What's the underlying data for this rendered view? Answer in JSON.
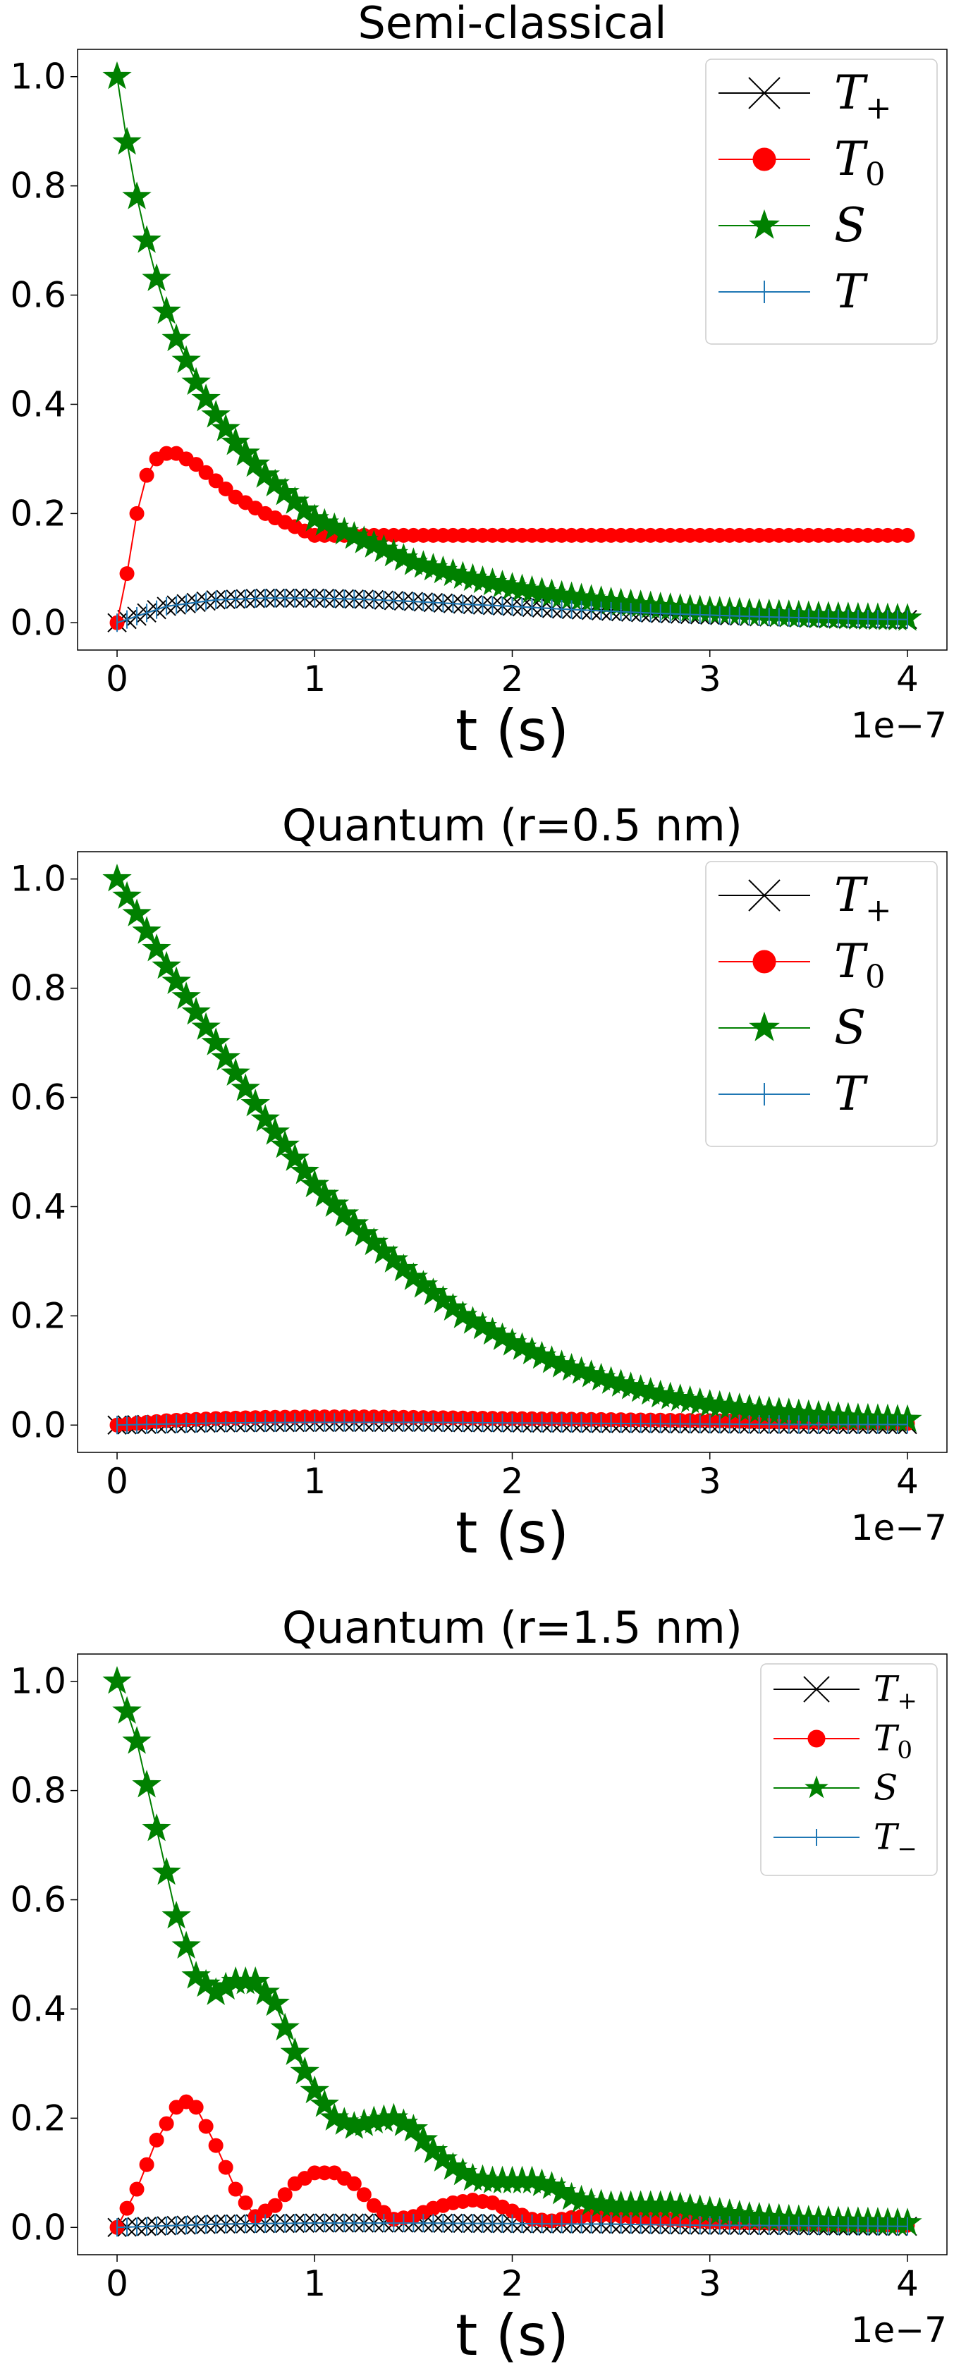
{
  "chart_data": [
    {
      "type": "line",
      "title": "Semi-classical",
      "xlabel": "t (s)",
      "x_offset_text": "1e−7",
      "xlim": [
        -0.2,
        4.2
      ],
      "ylim": [
        -0.05,
        1.05
      ],
      "x_ticks": [
        0,
        1,
        2,
        3,
        4
      ],
      "x_tick_labels": [
        "0",
        "1",
        "2",
        "3",
        "4"
      ],
      "y_ticks": [
        0.0,
        0.2,
        0.4,
        0.6,
        0.8,
        1.0
      ],
      "y_tick_labels": [
        "0.0",
        "0.2",
        "0.4",
        "0.6",
        "0.8",
        "1.0"
      ],
      "x_unit_scale": "1e-7 s",
      "legend_position": "upper-right",
      "grid": false,
      "series": [
        {
          "name": "T",
          "sub": "+",
          "color": "#000000",
          "marker": "x",
          "x": [
            0,
            0.25,
            0.5,
            0.75,
            1.0,
            1.25,
            1.5,
            1.75,
            2.0,
            2.25,
            2.5,
            2.75,
            3.0,
            3.25,
            3.5,
            3.75,
            4.0
          ],
          "y": [
            0.0,
            0.03,
            0.042,
            0.045,
            0.045,
            0.043,
            0.039,
            0.034,
            0.03,
            0.025,
            0.021,
            0.017,
            0.014,
            0.011,
            0.009,
            0.007,
            0.006
          ]
        },
        {
          "name": "T",
          "sub": "0",
          "color": "#ff0000",
          "marker": "o",
          "x": [
            0,
            0.05,
            0.1,
            0.15,
            0.2,
            0.25,
            0.3,
            0.35,
            0.4,
            0.5,
            0.6,
            0.75,
            1.0
          ],
          "y": [
            0.0,
            0.09,
            0.2,
            0.27,
            0.3,
            0.31,
            0.31,
            0.3,
            0.29,
            0.26,
            0.23,
            0.2,
            0.16
          ]
        },
        {
          "name": "S",
          "sub": "",
          "color": "#008000",
          "marker": "*",
          "x": [
            0,
            0.05,
            0.1,
            0.15,
            0.2,
            0.25,
            0.3,
            0.4,
            0.5,
            0.6,
            0.75,
            1.0,
            1.25,
            1.5,
            1.75,
            2.0,
            2.25,
            2.5,
            2.75,
            3.0,
            3.25,
            3.5,
            3.75,
            4.0
          ],
          "y": [
            1.0,
            0.88,
            0.78,
            0.7,
            0.63,
            0.57,
            0.52,
            0.44,
            0.38,
            0.33,
            0.27,
            0.19,
            0.15,
            0.11,
            0.085,
            0.065,
            0.05,
            0.038,
            0.029,
            0.022,
            0.017,
            0.013,
            0.01,
            0.008
          ]
        },
        {
          "name": "T",
          "sub": "",
          "color": "#1f77b4",
          "marker": "|",
          "x": [
            0,
            0.25,
            0.5,
            0.75,
            1.0,
            1.25,
            1.5,
            1.75,
            2.0,
            2.25,
            2.5,
            2.75,
            3.0,
            3.25,
            3.5,
            3.75,
            4.0
          ],
          "y": [
            0.0,
            0.03,
            0.042,
            0.045,
            0.045,
            0.043,
            0.039,
            0.034,
            0.03,
            0.025,
            0.021,
            0.017,
            0.014,
            0.011,
            0.009,
            0.007,
            0.006
          ]
        }
      ]
    },
    {
      "type": "line",
      "title": "Quantum (r=0.5 nm)",
      "xlabel": "t (s)",
      "x_offset_text": "1e−7",
      "xlim": [
        -0.2,
        4.2
      ],
      "ylim": [
        -0.05,
        1.05
      ],
      "x_ticks": [
        0,
        1,
        2,
        3,
        4
      ],
      "x_tick_labels": [
        "0",
        "1",
        "2",
        "3",
        "4"
      ],
      "y_ticks": [
        0.0,
        0.2,
        0.4,
        0.6,
        0.8,
        1.0
      ],
      "y_tick_labels": [
        "0.0",
        "0.2",
        "0.4",
        "0.6",
        "0.8",
        "1.0"
      ],
      "x_unit_scale": "1e-7 s",
      "legend_position": "upper-right",
      "grid": false,
      "series": [
        {
          "name": "T",
          "sub": "+",
          "color": "#000000",
          "marker": "x",
          "x": [
            0,
            0.5,
            1.0,
            1.5,
            2.0,
            2.5,
            3.0,
            3.5,
            4.0
          ],
          "y": [
            0.0,
            0.004,
            0.005,
            0.005,
            0.004,
            0.003,
            0.002,
            0.001,
            0.001
          ]
        },
        {
          "name": "T",
          "sub": "0",
          "color": "#ff0000",
          "marker": "o",
          "x": [
            0,
            0.25,
            0.5,
            0.75,
            1.0,
            1.25,
            1.5,
            1.75,
            2.0,
            2.25,
            2.5,
            2.75,
            3.0,
            3.25,
            3.5,
            3.75,
            4.0
          ],
          "y": [
            0.0,
            0.008,
            0.012,
            0.014,
            0.015,
            0.015,
            0.014,
            0.013,
            0.012,
            0.011,
            0.01,
            0.009,
            0.008,
            0.006,
            0.005,
            0.004,
            0.003
          ]
        },
        {
          "name": "S",
          "sub": "",
          "color": "#008000",
          "marker": "*",
          "x": [
            0,
            0.25,
            0.5,
            0.75,
            1.0,
            1.25,
            1.5,
            1.75,
            2.0,
            2.25,
            2.5,
            2.75,
            3.0,
            3.25,
            3.5,
            3.75,
            4.0
          ],
          "y": [
            1.0,
            0.84,
            0.7,
            0.56,
            0.44,
            0.35,
            0.27,
            0.2,
            0.15,
            0.11,
            0.08,
            0.055,
            0.038,
            0.027,
            0.019,
            0.013,
            0.01
          ]
        },
        {
          "name": "T",
          "sub": "",
          "color": "#1f77b4",
          "marker": "|",
          "x": [
            0,
            0.5,
            1.0,
            1.5,
            2.0,
            2.5,
            3.0,
            3.5,
            4.0
          ],
          "y": [
            0.0,
            0.004,
            0.005,
            0.005,
            0.004,
            0.003,
            0.002,
            0.001,
            0.001
          ]
        }
      ]
    },
    {
      "type": "line",
      "title": "Quantum (r=1.5 nm)",
      "xlabel": "t (s)",
      "x_offset_text": "1e−7",
      "xlim": [
        -0.2,
        4.2
      ],
      "ylim": [
        -0.05,
        1.05
      ],
      "x_ticks": [
        0,
        1,
        2,
        3,
        4
      ],
      "x_tick_labels": [
        "0",
        "1",
        "2",
        "3",
        "4"
      ],
      "y_ticks": [
        0.0,
        0.2,
        0.4,
        0.6,
        0.8,
        1.0
      ],
      "y_tick_labels": [
        "0.0",
        "0.2",
        "0.4",
        "0.6",
        "0.8",
        "1.0"
      ],
      "x_unit_scale": "1e-7 s",
      "legend_position": "upper-right",
      "legend_small": true,
      "grid": false,
      "series": [
        {
          "name": "T",
          "sub": "+",
          "color": "#000000",
          "marker": "x",
          "x": [
            0,
            0.5,
            1.0,
            1.5,
            2.0,
            2.5,
            3.0,
            3.5,
            4.0
          ],
          "y": [
            0.0,
            0.006,
            0.008,
            0.008,
            0.007,
            0.006,
            0.004,
            0.003,
            0.002
          ]
        },
        {
          "name": "T",
          "sub": "0",
          "color": "#ff0000",
          "marker": "o",
          "x": [
            0,
            0.1,
            0.2,
            0.3,
            0.35,
            0.4,
            0.5,
            0.6,
            0.7,
            0.8,
            0.9,
            1.0,
            1.1,
            1.2,
            1.3,
            1.4,
            1.5,
            1.6,
            1.7,
            1.8,
            1.9,
            2.0,
            2.1,
            2.2,
            2.3,
            2.4,
            2.5,
            2.75,
            3.0,
            3.5,
            4.0
          ],
          "y": [
            0.0,
            0.07,
            0.16,
            0.22,
            0.23,
            0.22,
            0.15,
            0.07,
            0.02,
            0.04,
            0.08,
            0.1,
            0.1,
            0.08,
            0.04,
            0.015,
            0.02,
            0.035,
            0.045,
            0.05,
            0.045,
            0.03,
            0.015,
            0.012,
            0.018,
            0.022,
            0.022,
            0.015,
            0.01,
            0.006,
            0.004
          ]
        },
        {
          "name": "S",
          "sub": "",
          "color": "#008000",
          "marker": "*",
          "x": [
            0,
            0.1,
            0.2,
            0.3,
            0.4,
            0.5,
            0.6,
            0.7,
            0.8,
            0.9,
            1.0,
            1.1,
            1.2,
            1.3,
            1.4,
            1.5,
            1.6,
            1.7,
            1.8,
            1.9,
            2.0,
            2.1,
            2.2,
            2.3,
            2.4,
            2.5,
            2.6,
            2.8,
            3.0,
            3.2,
            3.4,
            3.6,
            3.8,
            4.0
          ],
          "y": [
            1.0,
            0.89,
            0.73,
            0.57,
            0.46,
            0.43,
            0.45,
            0.45,
            0.41,
            0.32,
            0.25,
            0.2,
            0.185,
            0.195,
            0.2,
            0.18,
            0.14,
            0.11,
            0.09,
            0.085,
            0.085,
            0.085,
            0.075,
            0.055,
            0.045,
            0.04,
            0.04,
            0.04,
            0.03,
            0.02,
            0.015,
            0.012,
            0.01,
            0.008
          ]
        },
        {
          "name": "T",
          "sub": "−",
          "color": "#1f77b4",
          "marker": "|",
          "x": [
            0,
            0.5,
            1.0,
            1.5,
            2.0,
            2.5,
            3.0,
            3.5,
            4.0
          ],
          "y": [
            0.0,
            0.006,
            0.008,
            0.008,
            0.007,
            0.006,
            0.004,
            0.003,
            0.002
          ]
        }
      ]
    }
  ]
}
